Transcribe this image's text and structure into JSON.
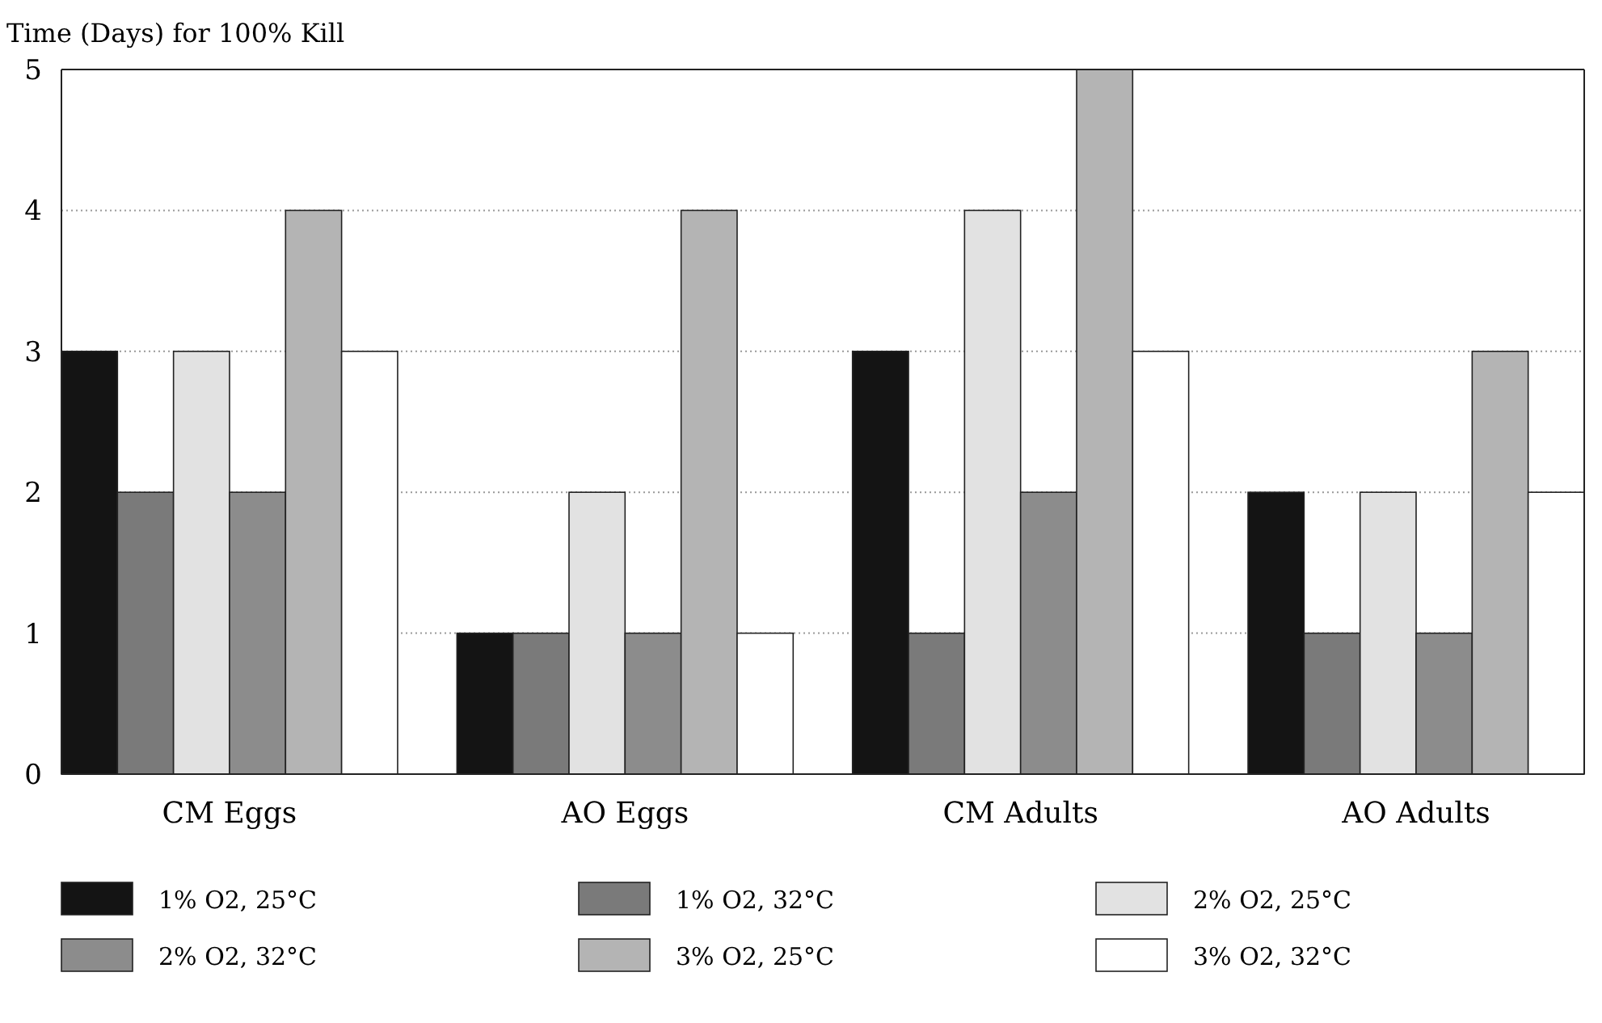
{
  "chart_data": {
    "type": "bar",
    "ylabel": "Time (Days) for 100% Kill",
    "categories": [
      "CM Eggs",
      "AO Eggs",
      "CM Adults",
      "AO Adults"
    ],
    "series": [
      {
        "name": "1% O2, 25°C",
        "color": "#141414",
        "values": [
          3,
          1,
          3,
          2
        ]
      },
      {
        "name": "1% O2, 32°C",
        "color": "#7a7a7a",
        "values": [
          2,
          1,
          1,
          1
        ]
      },
      {
        "name": "2% O2, 25°C",
        "color": "#e2e2e2",
        "values": [
          3,
          2,
          4,
          2
        ]
      },
      {
        "name": "2% O2, 32°C",
        "color": "#8c8c8c",
        "values": [
          2,
          1,
          2,
          1
        ]
      },
      {
        "name": "3% O2, 25°C",
        "color": "#b4b4b4",
        "values": [
          4,
          4,
          5,
          3
        ]
      },
      {
        "name": "3% O2, 32°C",
        "color": "#ffffff",
        "values": [
          3,
          1,
          3,
          2
        ]
      }
    ],
    "ylim": [
      0,
      5
    ],
    "yticks": [
      0,
      1,
      2,
      3,
      4,
      5
    ],
    "grid": "y",
    "legend": "bottom"
  }
}
